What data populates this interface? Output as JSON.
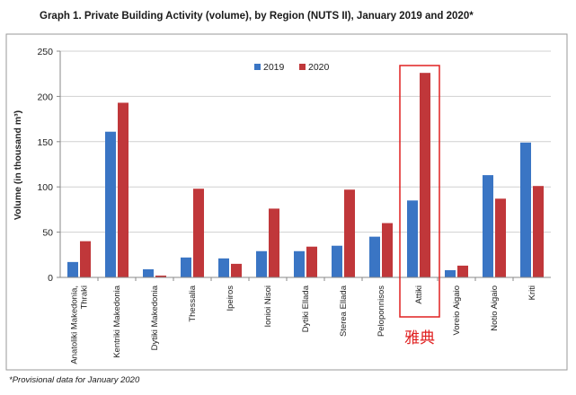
{
  "title": "Graph 1. Private Building Activity (volume), by Region (NUTS II), January 2019 and 2020*",
  "footnote": "*Provisional data for January 2020",
  "chart_data": {
    "type": "bar",
    "title": "Graph 1. Private Building Activity (volume), by Region (NUTS II), January 2019 and 2020*",
    "xlabel": "",
    "ylabel": "Volume (in thousand m³)",
    "ylim": [
      0,
      250
    ],
    "yticks": [
      0,
      50,
      100,
      150,
      200,
      250
    ],
    "legend": "top-center",
    "categories": [
      [
        "Anatoliki Makedonia,",
        "Thraki"
      ],
      [
        "Kentriki Makedonia"
      ],
      [
        "Dytiki Makedonia"
      ],
      [
        "Thessalia"
      ],
      [
        "Ipeiros"
      ],
      [
        "Ionioi Nisoi"
      ],
      [
        "Dytiki Ellada"
      ],
      [
        "Sterea Ellada"
      ],
      [
        "Peloponnisos"
      ],
      [
        "Attiki"
      ],
      [
        "Voreio Aigaio"
      ],
      [
        "Notio Aigaio"
      ],
      [
        "Kriti"
      ]
    ],
    "series": [
      {
        "name": "2019",
        "color": "#3a75c4",
        "values": [
          17,
          161,
          9,
          22,
          21,
          29,
          29,
          35,
          45,
          85,
          8,
          113,
          149
        ]
      },
      {
        "name": "2020",
        "color": "#c0373a",
        "values": [
          40,
          193,
          2,
          98,
          15,
          76,
          34,
          97,
          60,
          226,
          13,
          87,
          101
        ]
      }
    ],
    "highlight": {
      "category_index": 9,
      "color": "#e02020",
      "annotation": "雅典"
    }
  }
}
